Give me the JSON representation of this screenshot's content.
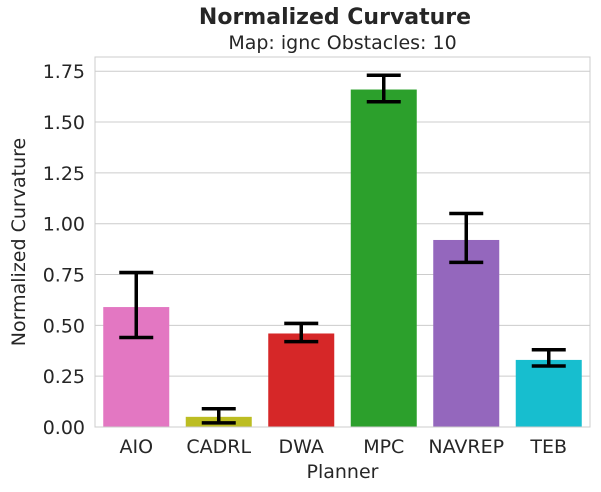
{
  "chart_data": {
    "type": "bar",
    "title": "Normalized Curvature",
    "subtitle": "Map: ignc Obstacles: 10",
    "xlabel": "Planner",
    "ylabel": "Normalized Curvature",
    "ylim": [
      0,
      1.82
    ],
    "yticks": [
      "0.00",
      "0.25",
      "0.50",
      "0.75",
      "1.00",
      "1.25",
      "1.50",
      "1.75"
    ],
    "ytick_values": [
      0,
      0.25,
      0.5,
      0.75,
      1.0,
      1.25,
      1.5,
      1.75
    ],
    "grid": "horizontal",
    "categories": [
      "AIO",
      "CADRL",
      "DWA",
      "MPC",
      "NAVREP",
      "TEB"
    ],
    "values": [
      0.59,
      0.05,
      0.46,
      1.66,
      0.92,
      0.33
    ],
    "error_low": [
      0.44,
      0.02,
      0.42,
      1.6,
      0.81,
      0.3
    ],
    "error_high": [
      0.76,
      0.09,
      0.51,
      1.73,
      1.05,
      0.38
    ],
    "colors": [
      "#e377c2",
      "#bcbd22",
      "#d62728",
      "#2ca02c",
      "#9467bd",
      "#17becf"
    ]
  }
}
